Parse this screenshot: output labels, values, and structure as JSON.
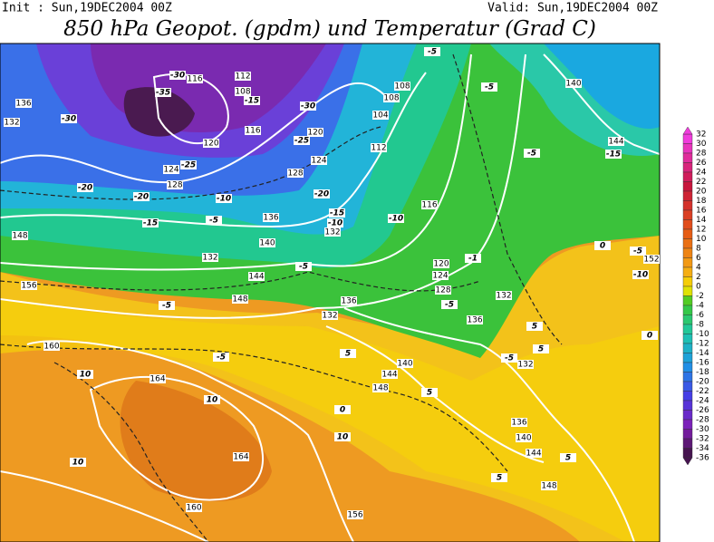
{
  "header": {
    "init": "Init : Sun,19DEC2004 00Z",
    "valid": "Valid: Sun,19DEC2004 00Z",
    "title": "850 hPa Geopot. (gpdm) und Temperatur (Grad C)"
  },
  "colorbar": {
    "labels": [
      32,
      30,
      28,
      26,
      24,
      22,
      20,
      18,
      16,
      14,
      12,
      10,
      8,
      6,
      4,
      2,
      0,
      -2,
      -4,
      -6,
      -8,
      -10,
      -12,
      -14,
      -16,
      -18,
      -20,
      -22,
      -24,
      -26,
      -28,
      -30,
      -32,
      -34,
      -36
    ]
  },
  "geopotential_labels": [
    112,
    116,
    108,
    116,
    120,
    124,
    128,
    128,
    124,
    120,
    112,
    108,
    104,
    108,
    116,
    120,
    124,
    128,
    132,
    136,
    140,
    144,
    148,
    132,
    148,
    156,
    160,
    164,
    164,
    160,
    156,
    136,
    132,
    140,
    144,
    148,
    136,
    132,
    132,
    136,
    140,
    144,
    148,
    140,
    144,
    152,
    136,
    132
  ],
  "temperature_labels": [
    -30,
    -35,
    -15,
    -30,
    -25,
    -25,
    -30,
    -20,
    -20,
    -15,
    -10,
    -5,
    -20,
    -15,
    -10,
    -10,
    -5,
    -5,
    -15,
    -5,
    -5,
    -5,
    -5,
    -1,
    -5,
    -10,
    0,
    0,
    5,
    5,
    -5,
    5,
    5,
    0,
    10,
    10,
    10,
    10,
    -5,
    5,
    5
  ]
}
